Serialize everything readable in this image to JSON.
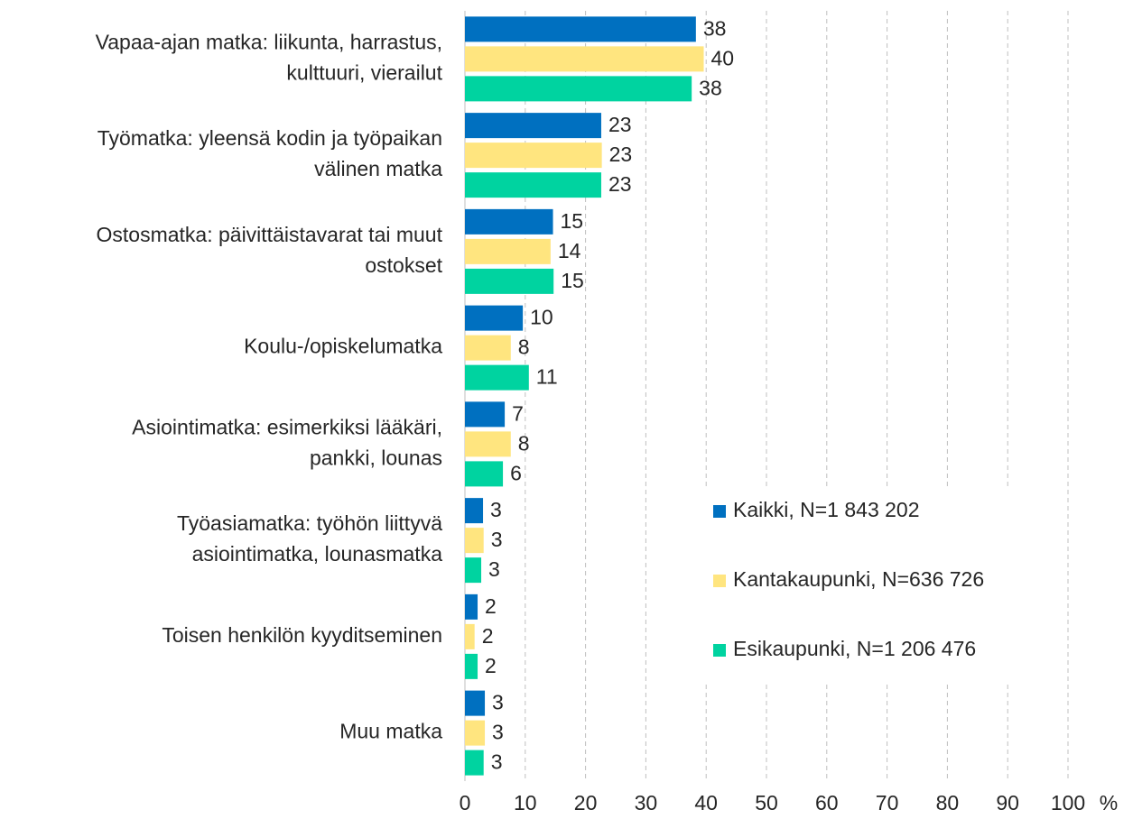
{
  "chart_data": {
    "type": "bar",
    "orientation": "horizontal",
    "categories": [
      [
        "Vapaa-ajan matka: liikunta, harrastus,",
        "kulttuuri, vierailut"
      ],
      [
        "Työmatka: yleensä kodin ja työpaikan",
        "välinen matka"
      ],
      [
        "Ostosmatka: päivittäistavarat tai muut",
        "ostokset"
      ],
      [
        "Koulu-/opiskelumatka"
      ],
      [
        "Asiointimatka: esimerkiksi lääkäri,",
        "pankki, lounas"
      ],
      [
        "Työasiamatka: työhön liittyvä",
        "asiointimatka, lounasmatka"
      ],
      [
        "Toisen henkilön kyyditseminen"
      ],
      [
        "Muu matka"
      ]
    ],
    "series": [
      {
        "name": "Kaikki, N=1 843 202",
        "color": "#0070c0",
        "values": [
          38.3,
          22.6,
          14.6,
          9.6,
          6.6,
          3.0,
          2.1,
          3.3
        ],
        "value_labels": [
          "38",
          "23",
          "15",
          "10",
          "7",
          "3",
          "2",
          "3"
        ]
      },
      {
        "name": "Kantakaupunki, N=636 726",
        "color": "#ffe57f",
        "values": [
          39.6,
          22.7,
          14.2,
          7.6,
          7.6,
          3.1,
          1.6,
          3.3
        ],
        "value_labels": [
          "40",
          "23",
          "14",
          "8",
          "8",
          "3",
          "2",
          "3"
        ]
      },
      {
        "name": "Esikaupunki, N=1 206 476",
        "color": "#00d3a0",
        "values": [
          37.6,
          22.6,
          14.7,
          10.6,
          6.3,
          2.7,
          2.1,
          3.1
        ],
        "value_labels": [
          "38",
          "23",
          "15",
          "11",
          "6",
          "3",
          "2",
          "3"
        ]
      }
    ],
    "xlim": [
      0,
      100
    ],
    "xticks": [
      0,
      10,
      20,
      30,
      40,
      50,
      60,
      70,
      80,
      90,
      100
    ],
    "x_unit": "%",
    "grid": true,
    "legend": "right"
  }
}
